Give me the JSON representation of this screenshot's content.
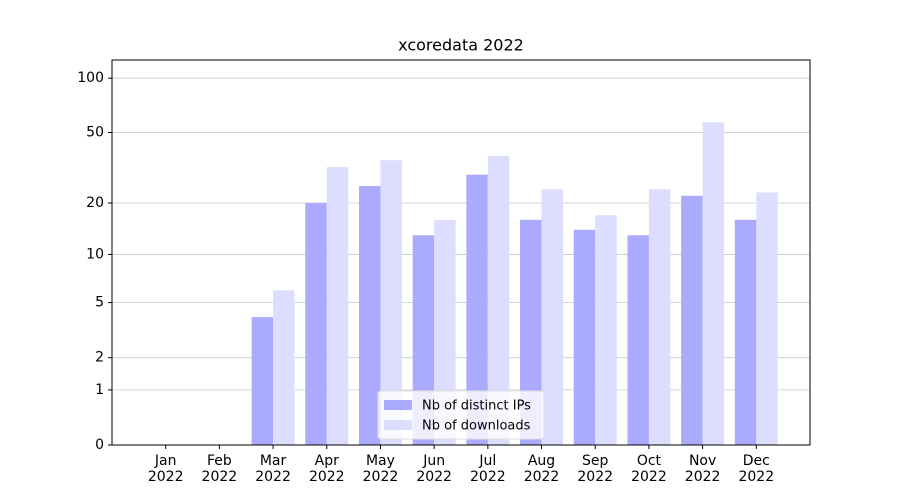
{
  "chart_data": {
    "type": "bar",
    "title": "xcoredata 2022",
    "scale": "log1p",
    "categories": [
      "Jan\n2022",
      "Feb\n2022",
      "Mar\n2022",
      "Apr\n2022",
      "May\n2022",
      "Jun\n2022",
      "Jul\n2022",
      "Aug\n2022",
      "Sep\n2022",
      "Oct\n2022",
      "Nov\n2022",
      "Dec\n2022"
    ],
    "series": [
      {
        "name": "Nb of distinct IPs",
        "color": "#aaaaff",
        "values": [
          0,
          0,
          4,
          20,
          25,
          13,
          29,
          16,
          14,
          13,
          22,
          16
        ]
      },
      {
        "name": "Nb of downloads",
        "color": "#ddddff",
        "values": [
          0,
          0,
          6,
          32,
          35,
          16,
          37,
          24,
          17,
          24,
          57,
          23
        ]
      }
    ],
    "ylim": [
      0,
      126
    ],
    "yticks": [
      0,
      1,
      2,
      5,
      10,
      20,
      50,
      100
    ],
    "grid": true,
    "legend": "lower center"
  }
}
